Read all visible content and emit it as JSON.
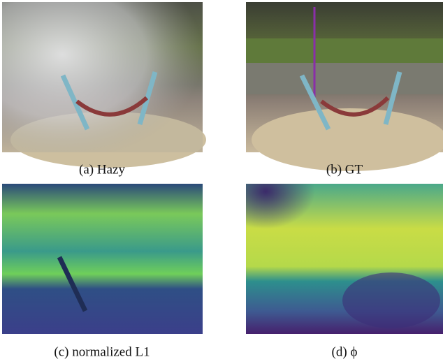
{
  "figure": {
    "panels": [
      {
        "caption": "(a) Hazy"
      },
      {
        "caption": "(b) GT"
      },
      {
        "caption": "(c) normalized L1"
      },
      {
        "caption": "(d) ϕ"
      }
    ]
  }
}
